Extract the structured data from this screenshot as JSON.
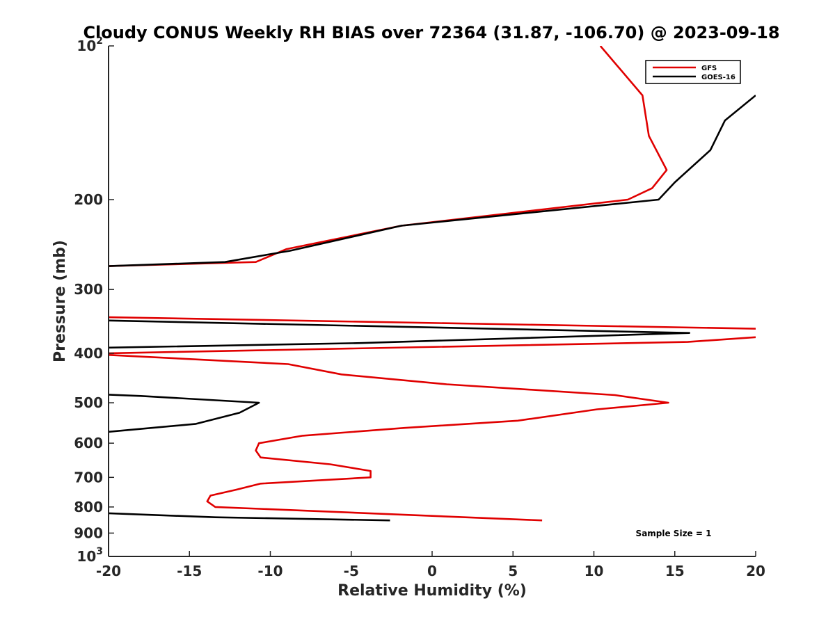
{
  "chart_data": {
    "type": "line",
    "title": "Cloudy CONUS Weekly RH BIAS over 72364 (31.87, -106.70) @ 2023-09-18",
    "xlabel": "Relative Humidity (%)",
    "ylabel": "Pressure (mb)",
    "xlim": [
      -20,
      20
    ],
    "ylim": [
      100,
      1000
    ],
    "y_scale": "log",
    "y_reversed": true,
    "grid": false,
    "legend_position": "top-right",
    "x_ticks": [
      -20,
      -15,
      -10,
      -5,
      0,
      5,
      10,
      15,
      20
    ],
    "x_tick_labels": [
      "-20",
      "-15",
      "-10",
      "-5",
      "0",
      "5",
      "10",
      "15",
      "20"
    ],
    "y_ticks": [
      {
        "value": 100,
        "base": "10",
        "exp": "2"
      },
      {
        "value": 200,
        "label": "200"
      },
      {
        "value": 300,
        "label": "300"
      },
      {
        "value": 400,
        "label": "400"
      },
      {
        "value": 500,
        "label": "500"
      },
      {
        "value": 600,
        "label": "600"
      },
      {
        "value": 700,
        "label": "700"
      },
      {
        "value": 800,
        "label": "800"
      },
      {
        "value": 900,
        "label": "900"
      },
      {
        "value": 1000,
        "base": "10",
        "exp": "3"
      }
    ],
    "annotation": "Sample Size = 1",
    "series": [
      {
        "name": "GFS",
        "color": "#e00000",
        "points": [
          [
            10.4,
            100
          ],
          [
            13.0,
            125
          ],
          [
            13.4,
            150
          ],
          [
            14.5,
            175
          ],
          [
            13.6,
            190
          ],
          [
            12.1,
            200
          ],
          [
            -1.9,
            225
          ],
          [
            -9.0,
            250
          ],
          [
            -10.9,
            265
          ],
          [
            -20,
            270
          ],
          [
            null,
            null
          ],
          [
            -20,
            340
          ],
          [
            20,
            358
          ],
          [
            null,
            null
          ],
          [
            20,
            372
          ],
          [
            15.8,
            380
          ],
          [
            -20,
            400
          ],
          [
            -20,
            403
          ],
          [
            -8.9,
            420
          ],
          [
            -5.6,
            440
          ],
          [
            0.9,
            460
          ],
          [
            11.3,
            483
          ],
          [
            14.6,
            500
          ],
          [
            10.2,
            515
          ],
          [
            5.3,
            542
          ],
          [
            -1.7,
            560
          ],
          [
            -8.0,
            580
          ],
          [
            -10.7,
            600
          ],
          [
            -10.9,
            620
          ],
          [
            -10.6,
            640
          ],
          [
            -6.3,
            660
          ],
          [
            -3.8,
            680
          ],
          [
            -3.8,
            700
          ],
          [
            -10.6,
            720
          ],
          [
            -12.1,
            740
          ],
          [
            -13.7,
            760
          ],
          [
            -13.9,
            780
          ],
          [
            -13.4,
            800
          ],
          [
            6.8,
            850
          ]
        ]
      },
      {
        "name": "GOES-16",
        "color": "#000000",
        "points": [
          [
            20,
            125
          ],
          [
            18.1,
            140
          ],
          [
            17.2,
            160
          ],
          [
            15.0,
            185
          ],
          [
            14.0,
            200
          ],
          [
            -1.9,
            225
          ],
          [
            -8.8,
            252
          ],
          [
            -12.8,
            265
          ],
          [
            -20,
            270
          ],
          [
            null,
            null
          ],
          [
            -20,
            345
          ],
          [
            15.9,
            365
          ],
          [
            -4.4,
            382
          ],
          [
            -20,
            390
          ],
          [
            null,
            null
          ],
          [
            -20,
            482
          ],
          [
            -18.0,
            485
          ],
          [
            -10.7,
            500
          ],
          [
            -11.9,
            523
          ],
          [
            -14.6,
            550
          ],
          [
            -20,
            570
          ],
          [
            null,
            null
          ],
          [
            -20,
            823
          ],
          [
            -13.4,
            838
          ],
          [
            -2.6,
            850
          ]
        ]
      }
    ]
  }
}
